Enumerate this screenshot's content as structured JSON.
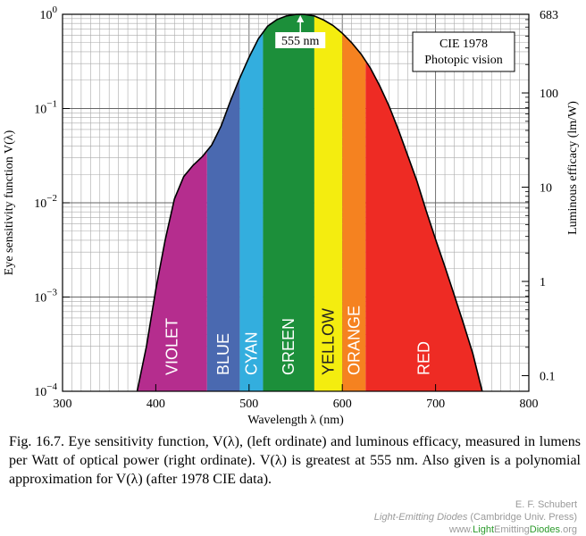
{
  "chart_data": {
    "type": "area",
    "title": "",
    "xlabel": "Wavelength λ (nm)",
    "ylabel_left": "Eye sensitivity function V(λ)",
    "ylabel_right": "Luminous efficacy (lm/W)",
    "xlim": [
      300,
      800
    ],
    "ylim": [
      0.0001,
      1
    ],
    "yscale": "log",
    "grid": true,
    "x_ticks": [
      "300",
      "400",
      "500",
      "600",
      "700",
      "800"
    ],
    "y_ticks_left": [
      {
        "base": "10",
        "exp": "0"
      },
      {
        "base": "10",
        "exp": "−1"
      },
      {
        "base": "10",
        "exp": "−2"
      },
      {
        "base": "10",
        "exp": "−3"
      },
      {
        "base": "10",
        "exp": "−4"
      }
    ],
    "y_ticks_right": [
      {
        "label": "683",
        "value": 683
      },
      {
        "label": "100",
        "value": 100
      },
      {
        "label": "10",
        "value": 10
      },
      {
        "label": "1",
        "value": 1
      },
      {
        "label": "0.1",
        "value": 0.1
      }
    ],
    "curve": [
      [
        380,
        0.0001
      ],
      [
        390,
        0.0003
      ],
      [
        400,
        0.0012
      ],
      [
        410,
        0.004
      ],
      [
        420,
        0.011
      ],
      [
        430,
        0.019
      ],
      [
        440,
        0.025
      ],
      [
        450,
        0.031
      ],
      [
        460,
        0.041
      ],
      [
        470,
        0.065
      ],
      [
        480,
        0.12
      ],
      [
        490,
        0.21
      ],
      [
        500,
        0.35
      ],
      [
        510,
        0.55
      ],
      [
        520,
        0.75
      ],
      [
        530,
        0.88
      ],
      [
        540,
        0.96
      ],
      [
        550,
        0.995
      ],
      [
        555,
        1.0
      ],
      [
        560,
        0.995
      ],
      [
        570,
        0.96
      ],
      [
        580,
        0.87
      ],
      [
        590,
        0.76
      ],
      [
        600,
        0.63
      ],
      [
        610,
        0.5
      ],
      [
        620,
        0.38
      ],
      [
        630,
        0.27
      ],
      [
        640,
        0.175
      ],
      [
        650,
        0.107
      ],
      [
        660,
        0.06
      ],
      [
        670,
        0.032
      ],
      [
        680,
        0.017
      ],
      [
        690,
        0.0082
      ],
      [
        700,
        0.0041
      ],
      [
        710,
        0.0021
      ],
      [
        720,
        0.00105
      ],
      [
        730,
        0.00052
      ],
      [
        740,
        0.00025
      ],
      [
        750,
        0.0001
      ]
    ],
    "bands": [
      {
        "label": "VIOLET",
        "from": 380,
        "to": 455,
        "color": "#b52d8e"
      },
      {
        "label": "BLUE",
        "from": 455,
        "to": 490,
        "color": "#4a69b0"
      },
      {
        "label": "CYAN",
        "from": 490,
        "to": 515,
        "color": "#33aede"
      },
      {
        "label": "GREEN",
        "from": 515,
        "to": 570,
        "color": "#1c8f3a"
      },
      {
        "label": "YELLOW",
        "from": 570,
        "to": 600,
        "color": "#f4ed0f"
      },
      {
        "label": "ORANGE",
        "from": 600,
        "to": 625,
        "color": "#f58220"
      },
      {
        "label": "RED",
        "from": 625,
        "to": 750,
        "color": "#ee2b24"
      }
    ],
    "peak": {
      "x": 555,
      "label": "555 nm"
    },
    "legend_box": [
      "CIE 1978",
      "Photopic vision"
    ]
  },
  "caption": "Fig. 16.7. Eye sensitivity function, V(λ), (left ordinate) and luminous efficacy, measured in lumens per Watt of optical power (right ordinate). V(λ) is greatest at 555 nm. Also given is a polynomial approximation for V(λ) (after 1978 CIE data).",
  "credit": {
    "author": "E. F. Schubert",
    "book_title": "Light-Emitting Diodes",
    "publisher": "(Cambridge Univ. Press)",
    "url_prefix": "www.",
    "url_light": "Light",
    "url_emitting": "Emitting",
    "url_diodes": "Diodes",
    "url_suffix": ".org"
  }
}
